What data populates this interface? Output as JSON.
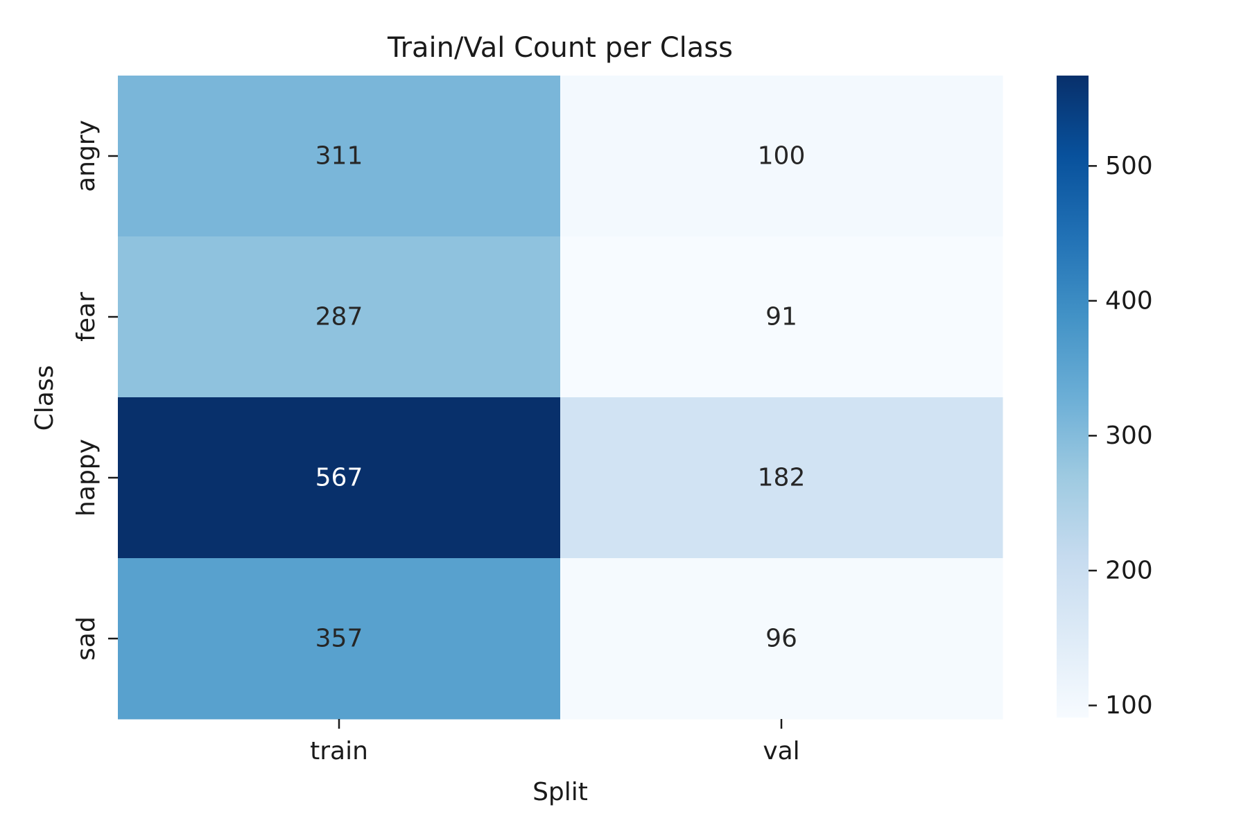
{
  "chart_data": {
    "type": "heatmap",
    "title": "Train/Val Count per Class",
    "xlabel": "Split",
    "ylabel": "Class",
    "x_categories": [
      "train",
      "val"
    ],
    "y_categories": [
      "angry",
      "fear",
      "happy",
      "sad"
    ],
    "values": [
      [
        311,
        100
      ],
      [
        287,
        91
      ],
      [
        567,
        182
      ],
      [
        357,
        96
      ]
    ],
    "colormap": "Blues",
    "colorbar": {
      "range": [
        91,
        567
      ],
      "ticks": [
        100,
        200,
        300,
        400,
        500
      ],
      "tick_labels": [
        "100",
        "200",
        "300",
        "400",
        "500"
      ]
    },
    "annotations": true,
    "grid": false
  }
}
